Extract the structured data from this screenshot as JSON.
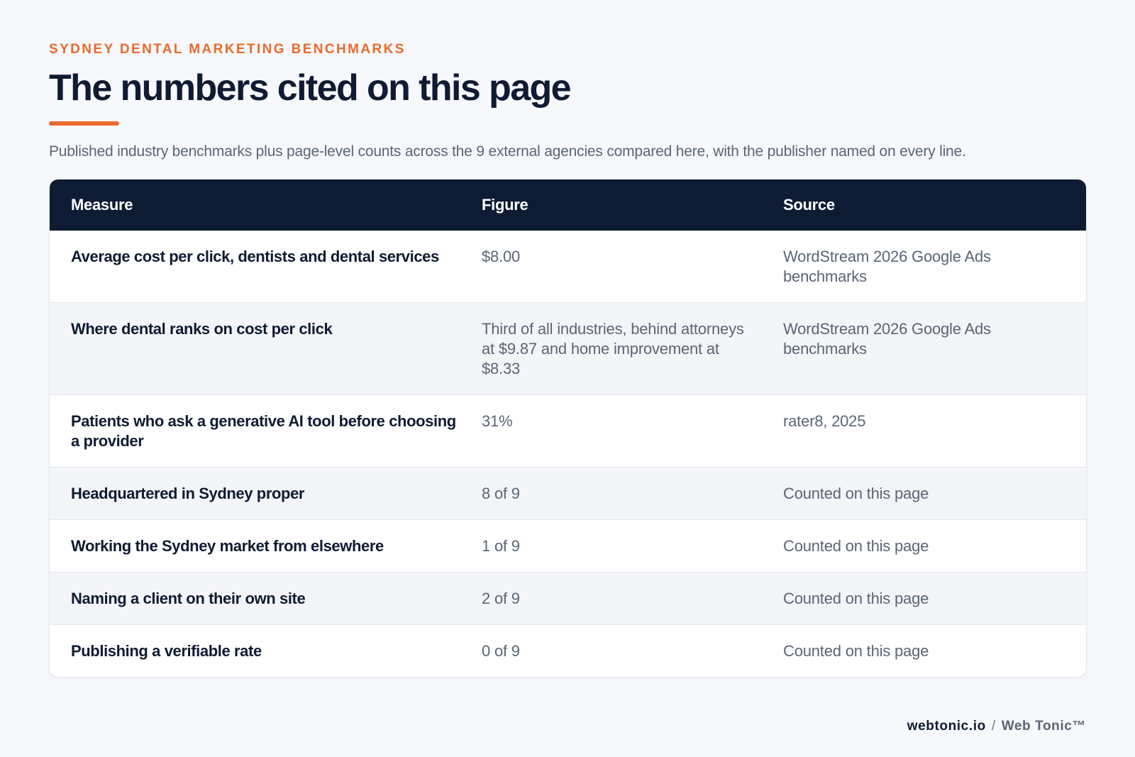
{
  "header": {
    "eyebrow": "SYDNEY DENTAL MARKETING BENCHMARKS",
    "title": "The numbers cited on this page",
    "subtitle": "Published industry benchmarks plus page-level counts across the 9 external agencies compared here, with the publisher named on every line.",
    "accent_color": "#ea6a2e"
  },
  "table": {
    "columns": [
      "Measure",
      "Figure",
      "Source"
    ],
    "rows": [
      {
        "measure": "Average cost per click, dentists and dental services",
        "figure": "$8.00",
        "source": "WordStream 2026 Google Ads benchmarks"
      },
      {
        "measure": "Where dental ranks on cost per click",
        "figure": "Third of all industries, behind attorneys at $9.87 and home improvement at $8.33",
        "source": "WordStream 2026 Google Ads benchmarks"
      },
      {
        "measure": "Patients who ask a generative AI tool before choosing a provider",
        "figure": "31%",
        "source": "rater8, 2025"
      },
      {
        "measure": "Headquartered in Sydney proper",
        "figure": "8 of 9",
        "source": "Counted on this page"
      },
      {
        "measure": "Working the Sydney market from elsewhere",
        "figure": "1 of 9",
        "source": "Counted on this page"
      },
      {
        "measure": "Naming a client on their own site",
        "figure": "2 of 9",
        "source": "Counted on this page"
      },
      {
        "measure": "Publishing a verifiable rate",
        "figure": "0 of 9",
        "source": "Counted on this page"
      }
    ],
    "header_color": "#0d1b33"
  },
  "footer": {
    "domain": "webtonic.io",
    "separator": "/",
    "brand": "Web Tonic™"
  }
}
